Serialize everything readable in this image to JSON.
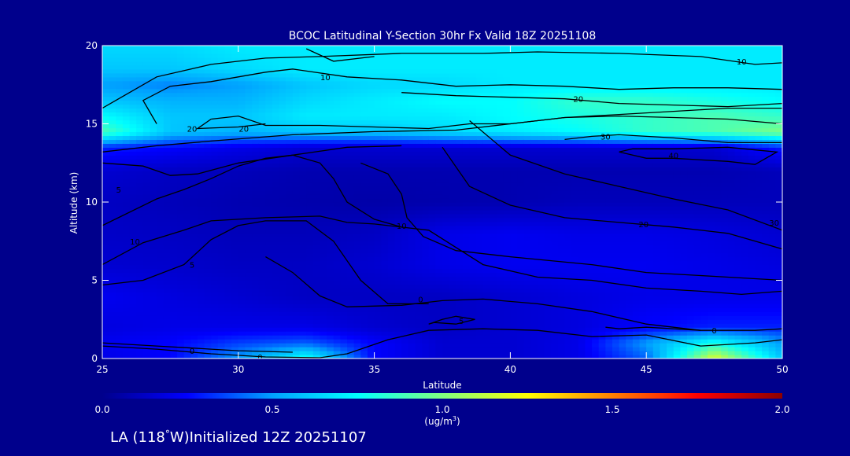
{
  "chart_data": {
    "type": "heatmap",
    "title": "BCOC Latitudinal Y-Section 30hr  Fx Valid 18Z 20251108",
    "xlabel": "Latitude",
    "ylabel": "Altitude (km)",
    "xlim": [
      25,
      50
    ],
    "ylim": [
      0,
      20
    ],
    "x_ticks": [
      25,
      30,
      35,
      40,
      45,
      50
    ],
    "y_ticks": [
      0,
      5,
      10,
      15,
      20
    ],
    "colorbar": {
      "range": [
        0.0,
        2.0
      ],
      "ticks": [
        "0.0",
        "0.5",
        "1.0",
        "1.5",
        "2.0"
      ],
      "unit_label": "(ug/m",
      "unit_sup": "3",
      "unit_close": ")",
      "colors": [
        "#00008c",
        "#0000ff",
        "#00a0ff",
        "#00ffff",
        "#80ff80",
        "#ffff00",
        "#ff8000",
        "#ff0000",
        "#8c0000"
      ]
    },
    "field": {
      "x": [
        25,
        27.5,
        30,
        32.5,
        35,
        37.5,
        40,
        42.5,
        45,
        47.5,
        50
      ],
      "y": [
        0,
        1,
        2,
        4,
        6,
        8,
        10,
        12,
        13.5,
        14.5,
        15.5,
        16.5,
        17.5,
        18.5,
        20
      ],
      "z": [
        [
          0.2,
          0.25,
          0.5,
          0.8,
          0.25,
          0.15,
          0.15,
          0.2,
          0.4,
          1.2,
          0.6
        ],
        [
          0.22,
          0.25,
          0.35,
          0.4,
          0.25,
          0.15,
          0.15,
          0.2,
          0.5,
          0.8,
          0.5
        ],
        [
          0.18,
          0.2,
          0.2,
          0.2,
          0.15,
          0.12,
          0.15,
          0.18,
          0.25,
          0.3,
          0.3
        ],
        [
          0.22,
          0.18,
          0.15,
          0.12,
          0.12,
          0.12,
          0.15,
          0.18,
          0.2,
          0.2,
          0.2
        ],
        [
          0.15,
          0.14,
          0.12,
          0.12,
          0.15,
          0.2,
          0.22,
          0.22,
          0.22,
          0.2,
          0.18
        ],
        [
          0.13,
          0.12,
          0.1,
          0.1,
          0.12,
          0.2,
          0.22,
          0.2,
          0.2,
          0.18,
          0.15
        ],
        [
          0.12,
          0.1,
          0.08,
          0.07,
          0.06,
          0.07,
          0.08,
          0.1,
          0.1,
          0.1,
          0.1
        ],
        [
          0.15,
          0.12,
          0.1,
          0.08,
          0.08,
          0.08,
          0.08,
          0.08,
          0.08,
          0.08,
          0.1
        ],
        [
          0.3,
          0.25,
          0.2,
          0.15,
          0.15,
          0.15,
          0.15,
          0.15,
          0.15,
          0.15,
          0.3
        ],
        [
          0.9,
          0.6,
          0.55,
          0.6,
          0.6,
          0.65,
          0.7,
          0.75,
          0.85,
          0.9,
          1.0
        ],
        [
          0.75,
          0.6,
          0.6,
          0.7,
          0.7,
          0.7,
          0.75,
          0.8,
          0.85,
          0.9,
          0.85
        ],
        [
          0.6,
          0.55,
          0.55,
          0.65,
          0.7,
          0.75,
          0.75,
          0.85,
          0.85,
          0.8,
          0.75
        ],
        [
          0.5,
          0.45,
          0.5,
          0.6,
          0.65,
          0.65,
          0.7,
          0.7,
          0.7,
          0.7,
          0.7
        ],
        [
          0.6,
          0.6,
          0.65,
          0.7,
          0.7,
          0.7,
          0.7,
          0.7,
          0.7,
          0.7,
          0.7
        ],
        [
          0.65,
          0.65,
          0.7,
          0.7,
          0.7,
          0.7,
          0.7,
          0.7,
          0.7,
          0.7,
          0.7
        ]
      ]
    },
    "contours": [
      {
        "label": "0",
        "label_at": [
          30.8,
          0.1
        ],
        "points": [
          [
            25,
            0.8
          ],
          [
            27,
            0.6
          ],
          [
            29,
            0.3
          ],
          [
            31,
            0.1
          ],
          [
            33,
            0.05
          ],
          [
            34,
            0.3
          ],
          [
            35.5,
            1.2
          ],
          [
            37,
            1.8
          ],
          [
            39,
            1.9
          ],
          [
            41,
            1.8
          ],
          [
            43,
            1.4
          ],
          [
            45,
            1.5
          ],
          [
            47,
            0.8
          ],
          [
            49,
            1.0
          ],
          [
            50,
            1.2
          ]
        ]
      },
      {
        "label": "0",
        "label_at": [
          28.3,
          0.5
        ],
        "points": [
          [
            25,
            1.0
          ],
          [
            27,
            0.8
          ],
          [
            29,
            0.6
          ],
          [
            30,
            0.5
          ],
          [
            32,
            0.4
          ]
        ]
      },
      {
        "label": "0",
        "label_at": [
          36.7,
          3.8
        ],
        "points": [
          [
            31,
            6.5
          ],
          [
            32,
            5.5
          ],
          [
            33,
            4.0
          ],
          [
            34,
            3.3
          ],
          [
            36,
            3.4
          ],
          [
            37.5,
            3.7
          ],
          [
            39,
            3.8
          ],
          [
            41,
            3.5
          ],
          [
            43,
            3.0
          ],
          [
            45,
            2.2
          ],
          [
            47,
            1.8
          ],
          [
            49,
            1.8
          ],
          [
            50,
            1.9
          ]
        ]
      },
      {
        "label": "0",
        "label_at": [
          47.5,
          1.8
        ],
        "points": [
          [
            43.5,
            2.0
          ],
          [
            44,
            1.9
          ],
          [
            45,
            2.0
          ],
          [
            47,
            1.8
          ]
        ]
      },
      {
        "label": "5",
        "label_at": [
          28.3,
          6.0
        ],
        "points": [
          [
            25,
            4.7
          ],
          [
            26.5,
            5.0
          ],
          [
            28,
            6.0
          ],
          [
            29,
            7.6
          ],
          [
            30,
            8.5
          ],
          [
            31,
            8.8
          ],
          [
            32.5,
            8.8
          ],
          [
            33.5,
            7.5
          ],
          [
            34.5,
            5.0
          ],
          [
            35.5,
            3.5
          ],
          [
            37,
            3.5
          ]
        ]
      },
      {
        "label": "10",
        "label_at": [
          26.2,
          7.5
        ],
        "points": [
          [
            25,
            6.0
          ],
          [
            26.5,
            7.4
          ],
          [
            28,
            8.2
          ],
          [
            29,
            8.8
          ],
          [
            31,
            9.0
          ],
          [
            33,
            9.1
          ],
          [
            34,
            8.7
          ],
          [
            35,
            8.6
          ],
          [
            37,
            8.2
          ],
          [
            39,
            6.0
          ],
          [
            41,
            5.2
          ],
          [
            43,
            5.0
          ],
          [
            45,
            4.5
          ],
          [
            47,
            4.3
          ],
          [
            48.5,
            4.1
          ],
          [
            50,
            4.3
          ]
        ]
      },
      {
        "label": "10",
        "label_at": [
          36.0,
          8.5
        ],
        "points": [
          [
            34.5,
            12.5
          ],
          [
            35.5,
            11.8
          ],
          [
            36.0,
            10.5
          ],
          [
            36.2,
            9.0
          ],
          [
            36.8,
            7.8
          ],
          [
            38,
            6.9
          ],
          [
            40,
            6.5
          ],
          [
            43,
            6.0
          ],
          [
            45,
            5.5
          ],
          [
            48,
            5.2
          ],
          [
            50,
            5.0
          ]
        ]
      },
      {
        "label": "5",
        "label_at": [
          25.6,
          10.8
        ],
        "points": [
          [
            25,
            8.5
          ],
          [
            27,
            10.2
          ],
          [
            28,
            10.8
          ],
          [
            29,
            11.5
          ],
          [
            30,
            12.3
          ],
          [
            31,
            12.8
          ],
          [
            32,
            13.0
          ],
          [
            33,
            12.5
          ],
          [
            33.5,
            11.5
          ],
          [
            34,
            10.0
          ],
          [
            35,
            8.9
          ],
          [
            36,
            8.4
          ]
        ]
      },
      {
        "label": "20",
        "label_at": [
          44.9,
          8.6
        ],
        "points": [
          [
            37.5,
            13.5
          ],
          [
            38.5,
            11.0
          ],
          [
            40,
            9.8
          ],
          [
            42,
            9.0
          ],
          [
            44,
            8.7
          ],
          [
            46,
            8.4
          ],
          [
            48,
            8.0
          ],
          [
            50,
            7.0
          ]
        ]
      },
      {
        "label": "30",
        "label_at": [
          49.7,
          8.7
        ],
        "points": [
          [
            38.5,
            15.2
          ],
          [
            40,
            13.0
          ],
          [
            42,
            11.8
          ],
          [
            44,
            11.0
          ],
          [
            46,
            10.2
          ],
          [
            48,
            9.5
          ],
          [
            50,
            8.2
          ]
        ]
      },
      {
        "label": "",
        "label_at": [
          0,
          0
        ],
        "points": [
          [
            25,
            12.5
          ],
          [
            26.5,
            12.3
          ],
          [
            27.5,
            11.7
          ],
          [
            28.5,
            11.8
          ],
          [
            30,
            12.5
          ],
          [
            32,
            13.0
          ],
          [
            34,
            13.5
          ],
          [
            36,
            13.6
          ]
        ]
      },
      {
        "label": "",
        "label_at": [
          0,
          0
        ],
        "points": [
          [
            25,
            13.2
          ],
          [
            27,
            13.6
          ],
          [
            29,
            13.9
          ],
          [
            32,
            14.3
          ],
          [
            35,
            14.5
          ],
          [
            38,
            14.6
          ],
          [
            40,
            15.0
          ],
          [
            42,
            15.4
          ],
          [
            44,
            15.5
          ],
          [
            46,
            15.4
          ],
          [
            48,
            15.3
          ],
          [
            50,
            15.0
          ]
        ]
      },
      {
        "label": "20",
        "label_at": [
          30.2,
          14.7
        ],
        "points": [
          [
            29,
            15.3
          ],
          [
            30,
            15.5
          ],
          [
            31,
            14.9
          ],
          [
            33,
            14.9
          ],
          [
            35,
            14.8
          ],
          [
            37,
            14.7
          ],
          [
            38.5,
            15.0
          ],
          [
            40,
            15.0
          ],
          [
            42,
            15.4
          ],
          [
            44,
            15.6
          ],
          [
            46,
            15.8
          ],
          [
            48,
            16.0
          ],
          [
            50,
            16.0
          ]
        ]
      },
      {
        "label": "20",
        "label_at": [
          28.3,
          14.7
        ],
        "points": [
          [
            29,
            15.3
          ],
          [
            28.5,
            14.7
          ],
          [
            30,
            14.8
          ],
          [
            31,
            15.0
          ]
        ]
      },
      {
        "label": "10",
        "label_at": [
          33.2,
          18.0
        ],
        "points": [
          [
            27,
            15.0
          ],
          [
            26.5,
            16.5
          ],
          [
            27.5,
            17.4
          ],
          [
            29,
            17.7
          ],
          [
            31,
            18.3
          ],
          [
            32,
            18.5
          ],
          [
            34,
            18.0
          ],
          [
            36,
            17.8
          ],
          [
            38,
            17.4
          ],
          [
            40,
            17.5
          ],
          [
            42,
            17.4
          ],
          [
            44,
            17.2
          ],
          [
            46,
            17.3
          ],
          [
            48,
            17.3
          ],
          [
            50,
            17.2
          ]
        ]
      },
      {
        "label": "20",
        "label_at": [
          42.5,
          16.6
        ],
        "points": [
          [
            36,
            17.0
          ],
          [
            38,
            16.8
          ],
          [
            40,
            16.7
          ],
          [
            42,
            16.6
          ],
          [
            44,
            16.3
          ],
          [
            46,
            16.2
          ],
          [
            48,
            16.1
          ],
          [
            50,
            16.3
          ]
        ]
      },
      {
        "label": "30",
        "label_at": [
          43.5,
          14.2
        ],
        "points": [
          [
            42,
            14.0
          ],
          [
            43,
            14.2
          ],
          [
            44,
            14.3
          ],
          [
            46,
            14.1
          ],
          [
            48,
            13.8
          ],
          [
            50,
            13.8
          ]
        ]
      },
      {
        "label": "40",
        "label_at": [
          46.0,
          13.0
        ],
        "points": [
          [
            44,
            13.2
          ],
          [
            45,
            12.8
          ],
          [
            46,
            12.8
          ],
          [
            48,
            12.6
          ],
          [
            49,
            12.4
          ],
          [
            49.8,
            13.2
          ],
          [
            48,
            13.5
          ],
          [
            46,
            13.4
          ],
          [
            44.5,
            13.4
          ],
          [
            44,
            13.2
          ]
        ]
      },
      {
        "label": "10",
        "label_at": [
          48.5,
          19.0
        ],
        "points": [
          [
            25,
            16.0
          ],
          [
            27,
            18.0
          ],
          [
            29,
            18.8
          ],
          [
            31,
            19.2
          ],
          [
            33,
            19.3
          ],
          [
            36,
            19.5
          ],
          [
            39,
            19.5
          ],
          [
            41,
            19.6
          ],
          [
            44,
            19.5
          ],
          [
            47,
            19.3
          ],
          [
            49,
            18.8
          ],
          [
            50,
            18.9
          ]
        ]
      },
      {
        "label": "",
        "label_at": [
          0,
          0
        ],
        "points": [
          [
            32.5,
            19.8
          ],
          [
            33.5,
            19.0
          ],
          [
            35,
            19.3
          ]
        ]
      },
      {
        "label": "5",
        "label_at": [
          38.2,
          2.4
        ],
        "points": [
          [
            37,
            2.2
          ],
          [
            37.5,
            2.5
          ],
          [
            38,
            2.7
          ],
          [
            38.7,
            2.5
          ],
          [
            38,
            2.2
          ],
          [
            37.2,
            2.3
          ],
          [
            37,
            2.2
          ]
        ]
      }
    ]
  },
  "footer": {
    "caption_prefix": "LA (118",
    "degree": "°",
    "caption_suffix": "W)Initialized 12Z 20251107"
  }
}
